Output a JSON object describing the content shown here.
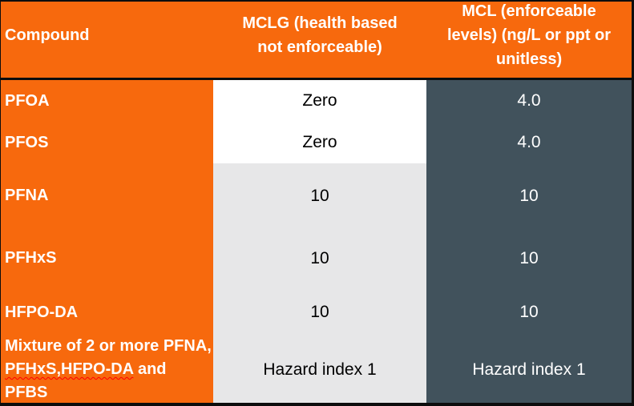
{
  "colors": {
    "header_and_compound_bg": "#F7690D",
    "mcl_column_bg": "#41525C",
    "mclg_gray_bg": "#E7E7E8",
    "mclg_white_bg": "#FFFFFF",
    "border": "#0D0D0D",
    "header_text": "#FFFFFF",
    "value_text_dark": "#000000",
    "value_text_light": "#FFFFFF",
    "spellcheck_underline": "#FF0000"
  },
  "table": {
    "headers": [
      "Compound",
      "MCLG (health based not enforceable)",
      "MCL (enforceable levels) (ng/L or ppt or unitless)"
    ],
    "rows": [
      {
        "compound": "PFOA",
        "mclg": "Zero",
        "mcl": "4.0"
      },
      {
        "compound": "PFOS",
        "mclg": "Zero",
        "mcl": "4.0"
      },
      {
        "compound": "PFNA",
        "mclg": "10",
        "mcl": "10"
      },
      {
        "compound": "PFHxS",
        "mclg": "10",
        "mcl": "10"
      },
      {
        "compound": "HFPO-DA",
        "mclg": "10",
        "mcl": "10"
      },
      {
        "compound_part1": "Mixture of 2 or more PFNA, ",
        "compound_misspelled": "PFHxS,HFPO-DA",
        "compound_part2": " and PFBS",
        "mclg": "Hazard index 1",
        "mcl": "Hazard index 1"
      }
    ]
  },
  "chart_data": {
    "type": "table",
    "title": "",
    "columns": [
      "Compound",
      "MCLG (health based not enforceable)",
      "MCL (enforceable levels) (ng/L or ppt or unitless)"
    ],
    "rows": [
      [
        "PFOA",
        "Zero",
        "4.0"
      ],
      [
        "PFOS",
        "Zero",
        "4.0"
      ],
      [
        "PFNA",
        "10",
        "10"
      ],
      [
        "PFHxS",
        "10",
        "10"
      ],
      [
        "HFPO-DA",
        "10",
        "10"
      ],
      [
        "Mixture of 2 or more PFNA, PFHxS,HFPO-DA and PFBS",
        "Hazard index 1",
        "Hazard index 1"
      ]
    ]
  }
}
